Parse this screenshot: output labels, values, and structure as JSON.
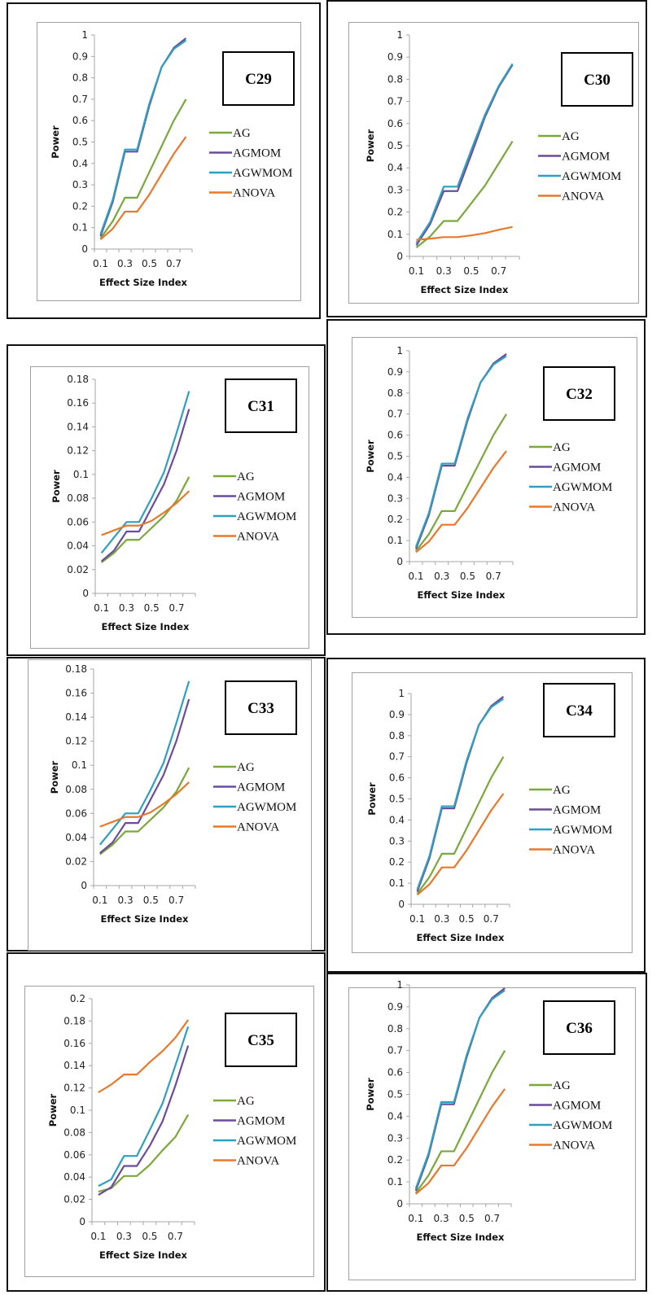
{
  "colors": {
    "AG": "#7aa83a",
    "AGMOM": "#6c4b9b",
    "AGWMOM": "#2f9fc0",
    "ANOVA": "#e8782a"
  },
  "chart_data": [
    {
      "type": "line",
      "title": "C29",
      "xlabel": "Effect Size Index",
      "ylabel": "Power",
      "categories": [
        "0.1",
        "0.2",
        "0.3",
        "0.4",
        "0.5",
        "0.6",
        "0.7",
        "0.8"
      ],
      "category_labels_shown": [
        "0.1",
        "",
        "0.3",
        "",
        "0.5",
        "",
        "0.7",
        ""
      ],
      "ylim": [
        0,
        1
      ],
      "yticks": [
        "0",
        "0.1",
        "0.2",
        "0.3",
        "0.4",
        "0.5",
        "0.6",
        "0.7",
        "0.8",
        "0.9",
        "1"
      ],
      "legend": "right",
      "grid": false,
      "series": [
        {
          "name": "AG",
          "values": [
            0.05,
            0.13,
            0.24,
            0.24,
            0.36,
            0.48,
            0.6,
            0.7
          ]
        },
        {
          "name": "AGMOM",
          "values": [
            0.06,
            0.22,
            0.455,
            0.455,
            0.67,
            0.85,
            0.94,
            0.985
          ]
        },
        {
          "name": "AGWMOM",
          "values": [
            0.07,
            0.23,
            0.465,
            0.465,
            0.68,
            0.85,
            0.935,
            0.975
          ]
        },
        {
          "name": "ANOVA",
          "values": [
            0.045,
            0.095,
            0.175,
            0.175,
            0.255,
            0.35,
            0.445,
            0.525
          ]
        }
      ]
    },
    {
      "type": "line",
      "title": "C30",
      "xlabel": "Effect Size Index",
      "ylabel": "Power",
      "categories": [
        "0.1",
        "0.2",
        "0.3",
        "0.4",
        "0.5",
        "0.6",
        "0.7",
        "0.8"
      ],
      "category_labels_shown": [
        "0.1",
        "",
        "0.3",
        "",
        "0.5",
        "",
        "0.7",
        ""
      ],
      "ylim": [
        0,
        1
      ],
      "yticks": [
        "0",
        "0.1",
        "0.2",
        "0.3",
        "0.4",
        "0.5",
        "0.6",
        "0.7",
        "0.8",
        "0.9",
        "1"
      ],
      "legend": "right",
      "grid": false,
      "series": [
        {
          "name": "AG",
          "values": [
            0.04,
            0.09,
            0.16,
            0.16,
            0.24,
            0.32,
            0.42,
            0.52
          ]
        },
        {
          "name": "AGMOM",
          "values": [
            0.05,
            0.145,
            0.295,
            0.295,
            0.46,
            0.63,
            0.765,
            0.865
          ]
        },
        {
          "name": "AGWMOM",
          "values": [
            0.06,
            0.155,
            0.315,
            0.315,
            0.48,
            0.64,
            0.77,
            0.87
          ]
        },
        {
          "name": "ANOVA",
          "values": [
            0.075,
            0.08,
            0.087,
            0.087,
            0.095,
            0.105,
            0.12,
            0.133
          ]
        }
      ]
    },
    {
      "type": "line",
      "title": "C31",
      "xlabel": "Effect Size Index",
      "ylabel": "Power",
      "categories": [
        "0.1",
        "0.2",
        "0.3",
        "0.4",
        "0.5",
        "0.6",
        "0.7",
        "0.8"
      ],
      "category_labels_shown": [
        "0.1",
        "",
        "0.3",
        "",
        "0.5",
        "",
        "0.7",
        ""
      ],
      "ylim": [
        0,
        0.18
      ],
      "yticks": [
        "0",
        "0.02",
        "0.04",
        "0.06",
        "0.08",
        "0.1",
        "0.12",
        "0.14",
        "0.16",
        "0.18"
      ],
      "legend": "right",
      "grid": false,
      "series": [
        {
          "name": "AG",
          "values": [
            0.026,
            0.034,
            0.045,
            0.045,
            0.055,
            0.065,
            0.078,
            0.098
          ]
        },
        {
          "name": "AGMOM",
          "values": [
            0.027,
            0.036,
            0.052,
            0.052,
            0.072,
            0.092,
            0.12,
            0.155
          ]
        },
        {
          "name": "AGWMOM",
          "values": [
            0.034,
            0.047,
            0.06,
            0.06,
            0.08,
            0.102,
            0.135,
            0.17
          ]
        },
        {
          "name": "ANOVA",
          "values": [
            0.049,
            0.053,
            0.057,
            0.057,
            0.061,
            0.068,
            0.076,
            0.086
          ]
        }
      ]
    },
    {
      "type": "line",
      "title": "C32",
      "xlabel": "Effect Size Index",
      "ylabel": "Power",
      "categories": [
        "0.1",
        "0.2",
        "0.3",
        "0.4",
        "0.5",
        "0.6",
        "0.7",
        "0.8"
      ],
      "category_labels_shown": [
        "0.1",
        "",
        "0.3",
        "",
        "0.5",
        "",
        "0.7",
        ""
      ],
      "ylim": [
        0,
        1
      ],
      "yticks": [
        "0",
        "0.1",
        "0.2",
        "0.3",
        "0.4",
        "0.5",
        "0.6",
        "0.7",
        "0.8",
        "0.9",
        "1"
      ],
      "legend": "right",
      "grid": false,
      "series": [
        {
          "name": "AG",
          "values": [
            0.05,
            0.13,
            0.24,
            0.24,
            0.36,
            0.48,
            0.6,
            0.7
          ]
        },
        {
          "name": "AGMOM",
          "values": [
            0.06,
            0.22,
            0.455,
            0.455,
            0.67,
            0.85,
            0.94,
            0.985
          ]
        },
        {
          "name": "AGWMOM",
          "values": [
            0.07,
            0.23,
            0.465,
            0.465,
            0.68,
            0.85,
            0.935,
            0.975
          ]
        },
        {
          "name": "ANOVA",
          "values": [
            0.045,
            0.095,
            0.175,
            0.175,
            0.255,
            0.35,
            0.445,
            0.525
          ]
        }
      ]
    },
    {
      "type": "line",
      "title": "C33",
      "xlabel": "Effect Size Index",
      "ylabel": "Power",
      "categories": [
        "0.1",
        "0.2",
        "0.3",
        "0.4",
        "0.5",
        "0.6",
        "0.7",
        "0.8"
      ],
      "category_labels_shown": [
        "0.1",
        "",
        "0.3",
        "",
        "0.5",
        "",
        "0.7",
        ""
      ],
      "ylim": [
        0,
        0.18
      ],
      "yticks": [
        "0",
        "0.02",
        "0.04",
        "0.06",
        "0.08",
        "0.1",
        "0.12",
        "0.14",
        "0.16",
        "0.18"
      ],
      "legend": "right",
      "grid": false,
      "series": [
        {
          "name": "AG",
          "values": [
            0.026,
            0.034,
            0.045,
            0.045,
            0.055,
            0.065,
            0.078,
            0.098
          ]
        },
        {
          "name": "AGMOM",
          "values": [
            0.027,
            0.036,
            0.052,
            0.052,
            0.072,
            0.092,
            0.12,
            0.155
          ]
        },
        {
          "name": "AGWMOM",
          "values": [
            0.034,
            0.047,
            0.06,
            0.06,
            0.08,
            0.102,
            0.135,
            0.17
          ]
        },
        {
          "name": "ANOVA",
          "values": [
            0.049,
            0.053,
            0.057,
            0.057,
            0.061,
            0.068,
            0.076,
            0.086
          ]
        }
      ]
    },
    {
      "type": "line",
      "title": "C34",
      "xlabel": "Effect Size Index",
      "ylabel": "Power",
      "categories": [
        "0.1",
        "0.2",
        "0.3",
        "0.4",
        "0.5",
        "0.6",
        "0.7",
        "0.8"
      ],
      "category_labels_shown": [
        "0.1",
        "",
        "0.3",
        "",
        "0.5",
        "",
        "0.7",
        ""
      ],
      "ylim": [
        0,
        1
      ],
      "yticks": [
        "0",
        "0.1",
        "0.2",
        "0.3",
        "0.4",
        "0.5",
        "0.6",
        "0.7",
        "0.8",
        "0.9",
        "1"
      ],
      "legend": "right",
      "grid": false,
      "series": [
        {
          "name": "AG",
          "values": [
            0.05,
            0.13,
            0.24,
            0.24,
            0.36,
            0.48,
            0.6,
            0.7
          ]
        },
        {
          "name": "AGMOM",
          "values": [
            0.06,
            0.22,
            0.455,
            0.455,
            0.67,
            0.85,
            0.94,
            0.985
          ]
        },
        {
          "name": "AGWMOM",
          "values": [
            0.07,
            0.23,
            0.465,
            0.465,
            0.68,
            0.85,
            0.935,
            0.975
          ]
        },
        {
          "name": "ANOVA",
          "values": [
            0.045,
            0.095,
            0.175,
            0.175,
            0.255,
            0.35,
            0.445,
            0.525
          ]
        }
      ]
    },
    {
      "type": "line",
      "title": "C35",
      "xlabel": "Effect Size Index",
      "ylabel": "Power",
      "categories": [
        "0.1",
        "0.2",
        "0.3",
        "0.4",
        "0.5",
        "0.6",
        "0.7",
        "0.8"
      ],
      "category_labels_shown": [
        "0.1",
        "",
        "0.3",
        "",
        "0.5",
        "",
        "0.7",
        ""
      ],
      "ylim": [
        0,
        0.2
      ],
      "yticks": [
        "0",
        "0.02",
        "0.04",
        "0.06",
        "0.08",
        "0.1",
        "0.12",
        "0.14",
        "0.16",
        "0.18",
        "0.2"
      ],
      "legend": "right",
      "grid": false,
      "series": [
        {
          "name": "AG",
          "values": [
            0.027,
            0.03,
            0.041,
            0.041,
            0.051,
            0.064,
            0.076,
            0.096
          ]
        },
        {
          "name": "AGMOM",
          "values": [
            0.024,
            0.031,
            0.05,
            0.05,
            0.068,
            0.09,
            0.122,
            0.158
          ]
        },
        {
          "name": "AGWMOM",
          "values": [
            0.032,
            0.038,
            0.059,
            0.059,
            0.082,
            0.106,
            0.14,
            0.175
          ]
        },
        {
          "name": "ANOVA",
          "values": [
            0.116,
            0.123,
            0.132,
            0.132,
            0.143,
            0.153,
            0.165,
            0.181
          ]
        }
      ]
    },
    {
      "type": "line",
      "title": "C36",
      "xlabel": "Effect Size Index",
      "ylabel": "Power",
      "categories": [
        "0.1",
        "0.2",
        "0.3",
        "0.4",
        "0.5",
        "0.6",
        "0.7",
        "0.8"
      ],
      "category_labels_shown": [
        "0.1",
        "",
        "0.3",
        "",
        "0.5",
        "",
        "0.7",
        ""
      ],
      "ylim": [
        0,
        1
      ],
      "yticks": [
        "0",
        "0.1",
        "0.2",
        "0.3",
        "0.4",
        "0.5",
        "0.6",
        "0.7",
        "0.8",
        "0.9",
        "1"
      ],
      "legend": "right",
      "grid": false,
      "series": [
        {
          "name": "AG",
          "values": [
            0.05,
            0.13,
            0.24,
            0.24,
            0.36,
            0.48,
            0.6,
            0.7
          ]
        },
        {
          "name": "AGMOM",
          "values": [
            0.06,
            0.22,
            0.455,
            0.455,
            0.67,
            0.85,
            0.94,
            0.985
          ]
        },
        {
          "name": "AGWMOM",
          "values": [
            0.07,
            0.23,
            0.465,
            0.465,
            0.68,
            0.85,
            0.935,
            0.975
          ]
        },
        {
          "name": "ANOVA",
          "values": [
            0.045,
            0.095,
            0.175,
            0.175,
            0.255,
            0.35,
            0.445,
            0.525
          ]
        }
      ]
    }
  ]
}
